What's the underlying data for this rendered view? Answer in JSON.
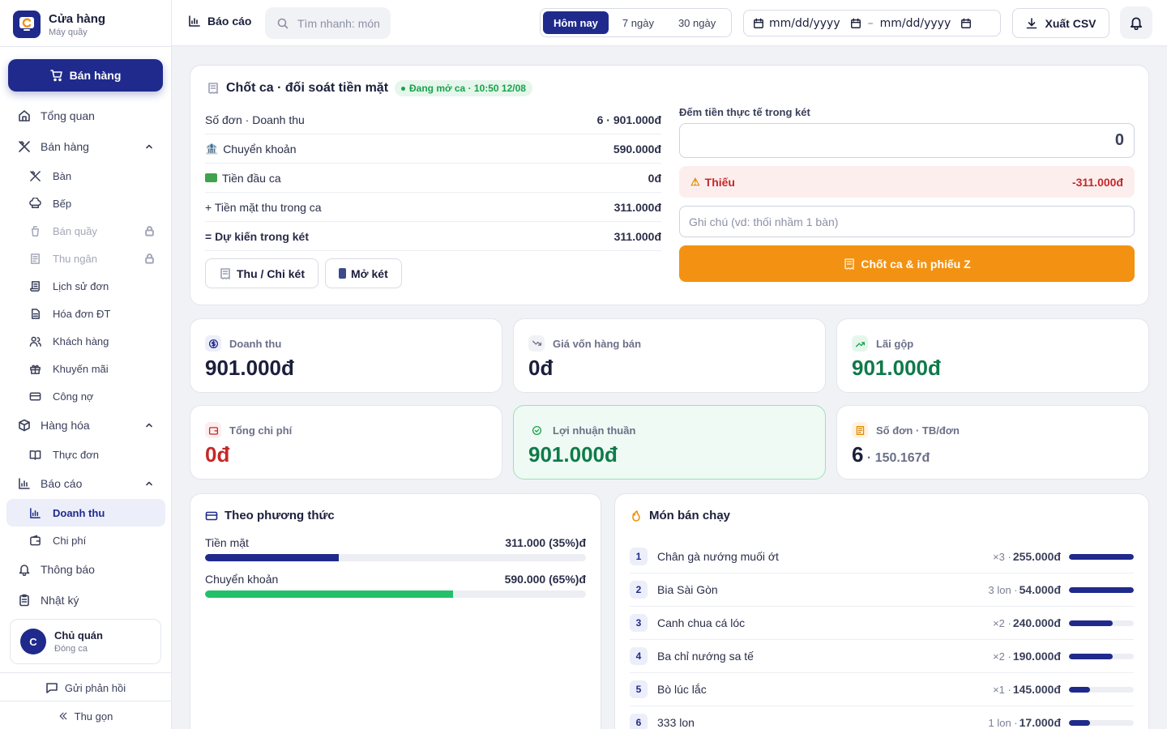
{
  "brand": {
    "title": "Cửa hàng",
    "subtitle": "Máy quầy"
  },
  "sidebar": {
    "sell_button": "Bán hàng",
    "items": [
      {
        "label": "Tổng quan"
      },
      {
        "label": "Bán hàng"
      },
      {
        "label": "Bàn"
      },
      {
        "label": "Bếp"
      },
      {
        "label": "Bán quầy"
      },
      {
        "label": "Thu ngân"
      },
      {
        "label": "Lịch sử đơn"
      },
      {
        "label": "Hóa đơn ĐT"
      },
      {
        "label": "Khách hàng"
      },
      {
        "label": "Khuyến mãi"
      },
      {
        "label": "Công nợ"
      },
      {
        "label": "Hàng hóa"
      },
      {
        "label": "Thực đơn"
      },
      {
        "label": "Báo cáo"
      },
      {
        "label": "Doanh thu"
      },
      {
        "label": "Chi phí"
      },
      {
        "label": "Thông báo"
      },
      {
        "label": "Nhật ký"
      }
    ],
    "user": {
      "initial": "C",
      "name": "Chủ quán",
      "status": "Đóng ca"
    },
    "feedback": "Gửi phản hồi",
    "collapse": "Thu gọn"
  },
  "topbar": {
    "title": "Báo cáo",
    "search_placeholder": "Tìm nhanh: món",
    "ranges": [
      "Hôm nay",
      "7 ngày",
      "30 ngày"
    ],
    "date_from": "mm/dd/yyyy",
    "date_sep": "–",
    "date_to": "mm/dd/yyyy",
    "export": "Xuất CSV"
  },
  "shift": {
    "title": "Chốt ca · đối soát tiền mặt",
    "badge": "Đang mở ca · 10:50 12/08",
    "rows": [
      {
        "label": "Số đơn · Doanh thu",
        "value": "6 · 901.000đ"
      },
      {
        "label": "Chuyển khoản",
        "value": "590.000đ"
      },
      {
        "label": "Tiền đầu ca",
        "value": "0đ"
      },
      {
        "label": "+ Tiền mặt thu trong ca",
        "value": "311.000đ"
      },
      {
        "label": "= Dự kiến trong két",
        "value": "311.000đ"
      }
    ],
    "btn_cash": "Thu / Chi két",
    "btn_open": "Mở két",
    "count_label": "Đếm tiền thực tế trong két",
    "count_value": "0",
    "short_label": "Thiếu",
    "short_value": "-311.000đ",
    "note_placeholder": "Ghi chú (vd: thối nhầm 1 bàn)",
    "close_btn": "Chốt ca & in phiếu Z"
  },
  "stats": [
    {
      "label": "Doanh thu",
      "value": "901.000đ",
      "color": "#1b1f3b"
    },
    {
      "label": "Giá vốn hàng bán",
      "value": "0đ",
      "color": "#1b1f3b"
    },
    {
      "label": "Lãi gộp",
      "value": "901.000đ",
      "color": "#0f7a4a"
    },
    {
      "label": "Tổng chi phí",
      "value": "0đ",
      "color": "#c62828"
    },
    {
      "label": "Lợi nhuận thuần",
      "value": "901.000đ",
      "color": "#0f7a4a"
    },
    {
      "label": "Số đơn · TB/đơn",
      "value": "6",
      "sub": " · 150.167đ",
      "color": "#1b1f3b"
    }
  ],
  "payment_methods": {
    "title": "Theo phương thức",
    "items": [
      {
        "label": "Tiền mặt",
        "value": "311.000 (35%)đ",
        "percent": 35,
        "color": "#1f2a8c"
      },
      {
        "label": "Chuyển khoản",
        "value": "590.000 (65%)đ",
        "percent": 65,
        "color": "#22c06a"
      }
    ]
  },
  "bestsellers": {
    "title": "Món bán chạy",
    "items": [
      {
        "rank": "1",
        "name": "Chân gà nướng muối ớt",
        "qty": "×3 · ",
        "amount": "255.000đ",
        "level": 1.0
      },
      {
        "rank": "2",
        "name": "Bia Sài Gòn",
        "qty": "3 lon · ",
        "amount": "54.000đ",
        "level": 1.0
      },
      {
        "rank": "3",
        "name": "Canh chua cá lóc",
        "qty": "×2 · ",
        "amount": "240.000đ",
        "level": 0.67
      },
      {
        "rank": "4",
        "name": "Ba chỉ nướng sa tế",
        "qty": "×2 · ",
        "amount": "190.000đ",
        "level": 0.67
      },
      {
        "rank": "5",
        "name": "Bò lúc lắc",
        "qty": "×1 · ",
        "amount": "145.000đ",
        "level": 0.33
      },
      {
        "rank": "6",
        "name": "333 lon",
        "qty": "1 lon · ",
        "amount": "17.000đ",
        "level": 0.33
      }
    ]
  }
}
